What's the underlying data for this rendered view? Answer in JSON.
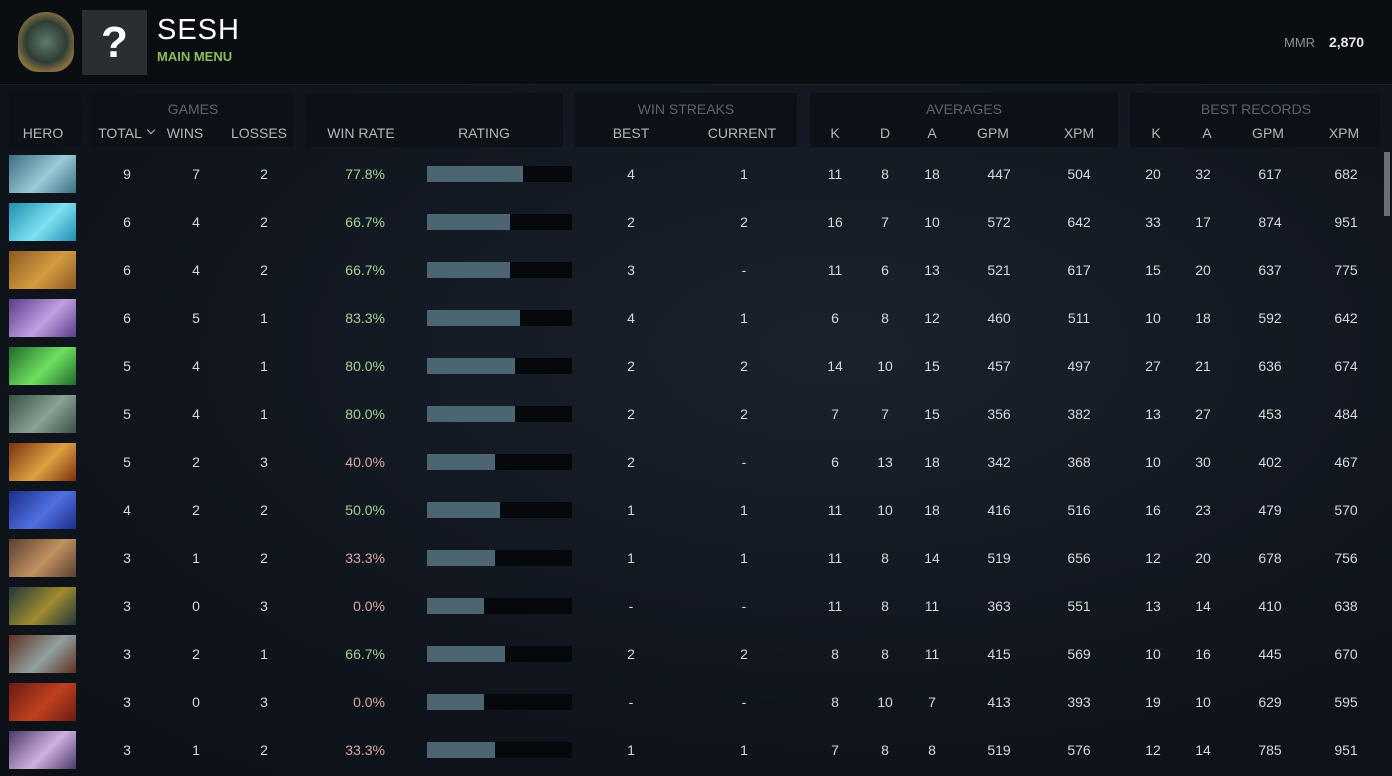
{
  "header": {
    "icon": "?",
    "title": "SESH",
    "subtitle": "MAIN MENU",
    "mmr_label": "MMR",
    "mmr": "2,870"
  },
  "table": {
    "groups": [
      "GAMES",
      "WIN STREAKS",
      "AVERAGES",
      "BEST RECORDS"
    ],
    "columns": [
      "HERO",
      "TOTAL",
      "WINS",
      "LOSSES",
      "WIN RATE",
      "RATING",
      "BEST",
      "CURRENT",
      "K",
      "D",
      "A",
      "GPM",
      "XPM",
      "K",
      "A",
      "GPM",
      "XPM"
    ],
    "rating_range": [
      0,
      100
    ],
    "ratings": [
      66,
      57,
      57,
      64,
      61,
      61,
      47,
      50,
      47,
      39,
      54,
      39,
      47
    ],
    "rows": [
      [
        9,
        7,
        2,
        "77.8%",
        4,
        1,
        11,
        8,
        18,
        447,
        504,
        20,
        32,
        617,
        682
      ],
      [
        6,
        4,
        2,
        "66.7%",
        2,
        2,
        16,
        7,
        10,
        572,
        642,
        33,
        17,
        874,
        951
      ],
      [
        6,
        4,
        2,
        "66.7%",
        3,
        "-",
        11,
        6,
        13,
        521,
        617,
        15,
        20,
        637,
        775
      ],
      [
        6,
        5,
        1,
        "83.3%",
        4,
        1,
        6,
        8,
        12,
        460,
        511,
        10,
        18,
        592,
        642
      ],
      [
        5,
        4,
        1,
        "80.0%",
        2,
        2,
        14,
        10,
        15,
        457,
        497,
        27,
        21,
        636,
        674
      ],
      [
        5,
        4,
        1,
        "80.0%",
        2,
        2,
        7,
        7,
        15,
        356,
        382,
        13,
        27,
        453,
        484
      ],
      [
        5,
        2,
        3,
        "40.0%",
        2,
        "-",
        6,
        13,
        18,
        342,
        368,
        10,
        30,
        402,
        467
      ],
      [
        4,
        2,
        2,
        "50.0%",
        1,
        1,
        11,
        10,
        18,
        416,
        516,
        16,
        23,
        479,
        570
      ],
      [
        3,
        1,
        2,
        "33.3%",
        1,
        1,
        11,
        8,
        14,
        519,
        656,
        12,
        20,
        678,
        756
      ],
      [
        3,
        0,
        3,
        "0.0%",
        "-",
        "-",
        11,
        8,
        11,
        363,
        551,
        13,
        14,
        410,
        638
      ],
      [
        3,
        2,
        1,
        "66.7%",
        2,
        2,
        8,
        8,
        11,
        415,
        569,
        10,
        16,
        445,
        670
      ],
      [
        3,
        0,
        3,
        "0.0%",
        "-",
        "-",
        8,
        10,
        7,
        413,
        393,
        19,
        10,
        629,
        595
      ],
      [
        3,
        1,
        2,
        "33.3%",
        1,
        1,
        7,
        8,
        8,
        519,
        576,
        12,
        14,
        785,
        951
      ]
    ]
  }
}
